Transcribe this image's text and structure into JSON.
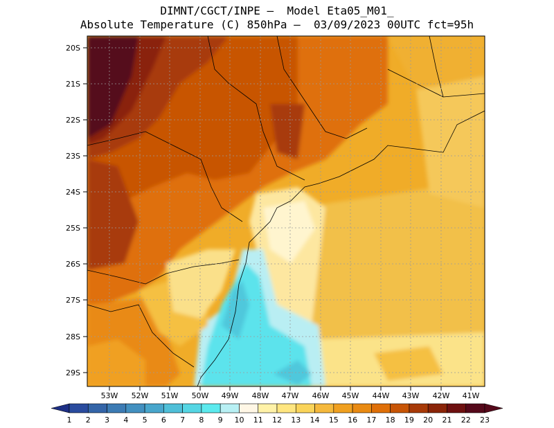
{
  "title": {
    "line1": "DIMNT/CGCT/INPE –  Model Eta05_M01_",
    "line2": "Absolute Temperature (C) 850hPa –  03/09/2023 00UTC fct=95h"
  },
  "chart_data": {
    "type": "heatmap",
    "x_ticks": [
      "53W",
      "52W",
      "51W",
      "50W",
      "49W",
      "48W",
      "47W",
      "46W",
      "45W",
      "44W",
      "43W",
      "42W",
      "41W"
    ],
    "y_ticks": [
      "20S",
      "21S",
      "22S",
      "23S",
      "24S",
      "25S",
      "26S",
      "27S",
      "28S",
      "29S"
    ],
    "colorbar": {
      "labels": [
        "1",
        "2",
        "3",
        "4",
        "5",
        "6",
        "7",
        "8",
        "9",
        "10",
        "11",
        "12",
        "13",
        "14",
        "15",
        "16",
        "17",
        "18",
        "19",
        "20",
        "21",
        "22",
        "23"
      ],
      "colors": [
        "#1d2f85",
        "#2a4b9e",
        "#3465a8",
        "#3c7bb4",
        "#4290c0",
        "#48a6cc",
        "#4fbfd8",
        "#55d6e4",
        "#5ceaee",
        "#b8f0f4",
        "#fff7e6",
        "#fff2a8",
        "#ffe680",
        "#fad45a",
        "#f5b93c",
        "#f0a020",
        "#e98a12",
        "#df6f08",
        "#c85506",
        "#a83a08",
        "#8a2408",
        "#6e1010",
        "#55081a"
      ]
    },
    "grid": true
  }
}
